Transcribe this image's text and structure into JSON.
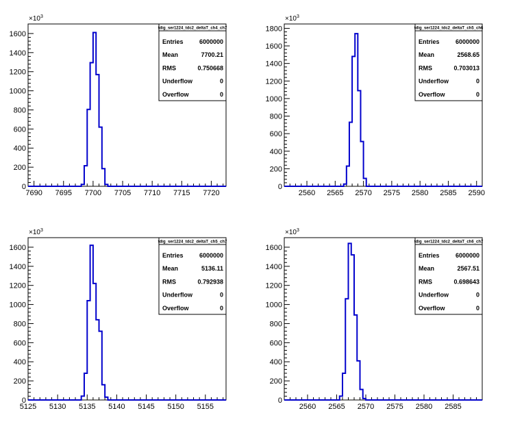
{
  "chart_data": [
    {
      "type": "histogram",
      "stats": {
        "title": "tdig_ser1224_tdc2_deltaT_ch4_ch7",
        "rows": [
          {
            "label": "Entries",
            "value": "6000000"
          },
          {
            "label": "Mean",
            "value": "7700.21"
          },
          {
            "label": "RMS",
            "value": "0.750668"
          },
          {
            "label": "Underflow",
            "value": "0"
          },
          {
            "label": "Overflow",
            "value": "0"
          }
        ]
      },
      "y_exponent": {
        "base": "×10",
        "power": "3"
      },
      "xlim": [
        7689,
        7722.5
      ],
      "ylim": [
        0,
        1700
      ],
      "x_ticks": [
        7690,
        7695,
        7700,
        7705,
        7710,
        7715,
        7720
      ],
      "y_ticks": [
        0,
        200,
        400,
        600,
        800,
        1000,
        1200,
        1400,
        1600
      ],
      "bin_width": 0.5,
      "bins": [
        {
          "x": 7698.0,
          "y": 20
        },
        {
          "x": 7698.5,
          "y": 215
        },
        {
          "x": 7699.0,
          "y": 805
        },
        {
          "x": 7699.5,
          "y": 1295
        },
        {
          "x": 7700.0,
          "y": 1610
        },
        {
          "x": 7700.5,
          "y": 1170
        },
        {
          "x": 7701.0,
          "y": 620
        },
        {
          "x": 7701.5,
          "y": 185
        },
        {
          "x": 7702.0,
          "y": 20
        }
      ]
    },
    {
      "type": "histogram",
      "stats": {
        "title": "tdig_ser1224_tdc2_deltaT_ch5_ch6",
        "rows": [
          {
            "label": "Entries",
            "value": "6000000"
          },
          {
            "label": "Mean",
            "value": "2568.65"
          },
          {
            "label": "RMS",
            "value": "0.703013"
          },
          {
            "label": "Underflow",
            "value": "0"
          },
          {
            "label": "Overflow",
            "value": "0"
          }
        ]
      },
      "y_exponent": {
        "base": "×10",
        "power": "3"
      },
      "xlim": [
        2556,
        2591
      ],
      "ylim": [
        0,
        1850
      ],
      "x_ticks": [
        2560,
        2565,
        2570,
        2575,
        2580,
        2585,
        2590
      ],
      "y_ticks": [
        0,
        200,
        400,
        600,
        800,
        1000,
        1200,
        1400,
        1600,
        1800
      ],
      "bin_width": 0.5,
      "bins": [
        {
          "x": 2566.5,
          "y": 25
        },
        {
          "x": 2567.0,
          "y": 230
        },
        {
          "x": 2567.5,
          "y": 730
        },
        {
          "x": 2568.0,
          "y": 1480
        },
        {
          "x": 2568.5,
          "y": 1740
        },
        {
          "x": 2569.0,
          "y": 1090
        },
        {
          "x": 2569.5,
          "y": 510
        },
        {
          "x": 2570.0,
          "y": 90
        }
      ]
    },
    {
      "type": "histogram",
      "stats": {
        "title": "tdig_ser1224_tdc2_deltaT_ch5_ch7",
        "rows": [
          {
            "label": "Entries",
            "value": "6000000"
          },
          {
            "label": "Mean",
            "value": "5136.11"
          },
          {
            "label": "RMS",
            "value": "0.792938"
          },
          {
            "label": "Underflow",
            "value": "0"
          },
          {
            "label": "Overflow",
            "value": "0"
          }
        ]
      },
      "y_exponent": {
        "base": "×10",
        "power": "3"
      },
      "xlim": [
        5125,
        5158.5
      ],
      "ylim": [
        0,
        1700
      ],
      "x_ticks": [
        5125,
        5130,
        5135,
        5140,
        5145,
        5150,
        5155
      ],
      "y_ticks": [
        0,
        200,
        400,
        600,
        800,
        1000,
        1200,
        1400,
        1600
      ],
      "bin_width": 0.5,
      "bins": [
        {
          "x": 5134.0,
          "y": 40
        },
        {
          "x": 5134.5,
          "y": 280
        },
        {
          "x": 5135.0,
          "y": 1040
        },
        {
          "x": 5135.5,
          "y": 1620
        },
        {
          "x": 5136.0,
          "y": 1220
        },
        {
          "x": 5136.5,
          "y": 840
        },
        {
          "x": 5137.0,
          "y": 720
        },
        {
          "x": 5137.5,
          "y": 160
        },
        {
          "x": 5138.0,
          "y": 30
        }
      ]
    },
    {
      "type": "histogram",
      "stats": {
        "title": "tdig_ser1224_tdc2_deltaT_ch6_ch7",
        "rows": [
          {
            "label": "Entries",
            "value": "6000000"
          },
          {
            "label": "Mean",
            "value": "2567.51"
          },
          {
            "label": "RMS",
            "value": "0.698643"
          },
          {
            "label": "Underflow",
            "value": "0"
          },
          {
            "label": "Overflow",
            "value": "0"
          }
        ]
      },
      "y_exponent": {
        "base": "×10",
        "power": "3"
      },
      "xlim": [
        2556,
        2590
      ],
      "ylim": [
        0,
        1700
      ],
      "x_ticks": [
        2560,
        2565,
        2570,
        2575,
        2580,
        2585
      ],
      "y_ticks": [
        0,
        200,
        400,
        600,
        800,
        1000,
        1200,
        1400,
        1600
      ],
      "bin_width": 0.5,
      "bins": [
        {
          "x": 2565.5,
          "y": 40
        },
        {
          "x": 2566.0,
          "y": 280
        },
        {
          "x": 2566.5,
          "y": 1060
        },
        {
          "x": 2567.0,
          "y": 1640
        },
        {
          "x": 2567.5,
          "y": 1520
        },
        {
          "x": 2568.0,
          "y": 890
        },
        {
          "x": 2568.5,
          "y": 410
        },
        {
          "x": 2569.0,
          "y": 110
        },
        {
          "x": 2569.5,
          "y": 15
        }
      ]
    }
  ],
  "colors": {
    "histogram_line": "#0000cc",
    "axis": "#000000",
    "frame": "#000000",
    "background": "#ffffff"
  }
}
